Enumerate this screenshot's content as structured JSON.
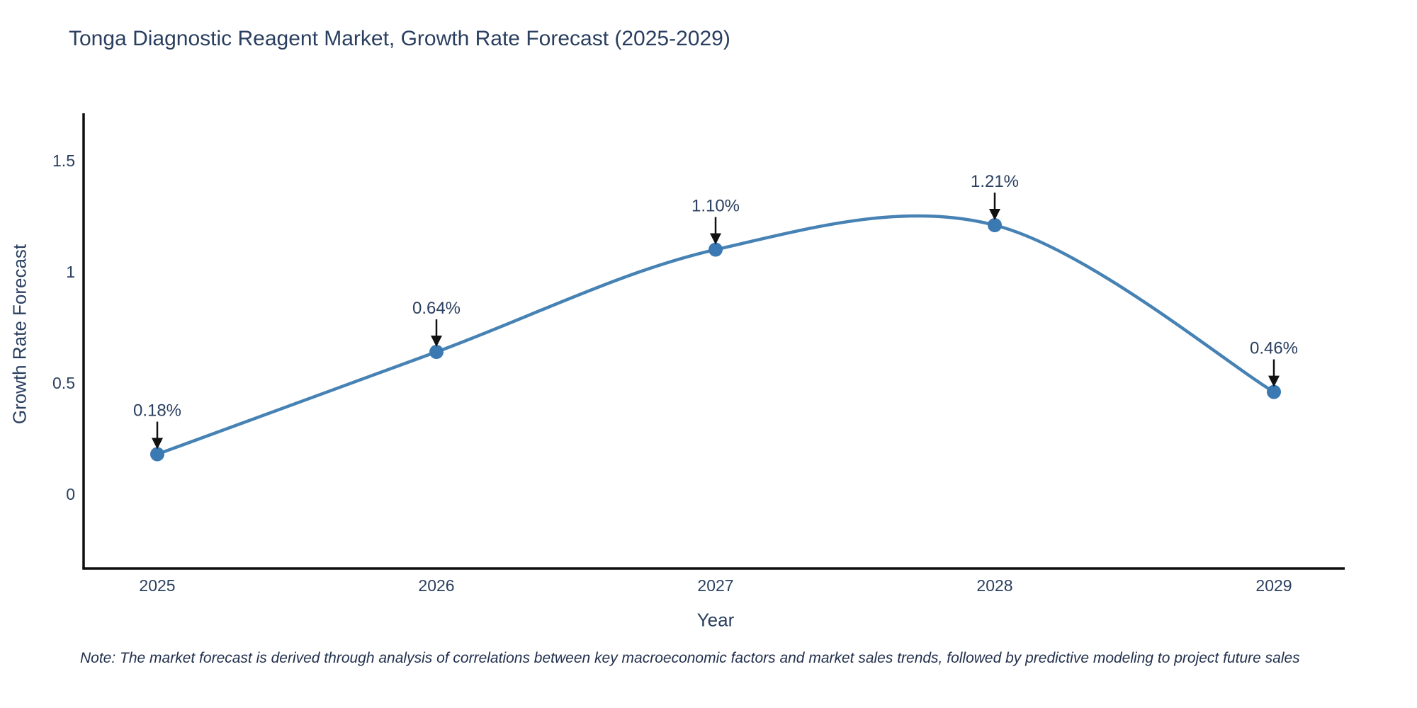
{
  "chart_data": {
    "type": "line",
    "line_shape": "spline",
    "title": "Tonga Diagnostic Reagent Market, Growth Rate Forecast (2025-2029)",
    "xlabel": "Year",
    "ylabel": "Growth Rate Forecast",
    "categories": [
      "2025",
      "2026",
      "2027",
      "2028",
      "2029"
    ],
    "values": [
      0.18,
      0.64,
      1.1,
      1.21,
      0.46
    ],
    "point_labels": [
      "0.18%",
      "0.64%",
      "1.10%",
      "1.21%",
      "0.46%"
    ],
    "ylim": [
      -0.334,
      1.713
    ],
    "yticks": [
      0,
      0.5,
      1,
      1.5
    ],
    "ytick_labels": [
      "0",
      "0.5",
      "1",
      "1.5"
    ],
    "grid": false,
    "legend": "none",
    "note": "Note: The market forecast is derived through analysis of correlations between key macroeconomic factors and market sales trends, followed by predictive modeling to project future sales",
    "colors": {
      "line": "#4682b4",
      "marker": "#3b79b3",
      "text": "#2a3f5f",
      "tick_text": "#2a3f5f",
      "arrow": "#111111",
      "axis": "#0f0f0f",
      "background": "#ffffff"
    }
  }
}
